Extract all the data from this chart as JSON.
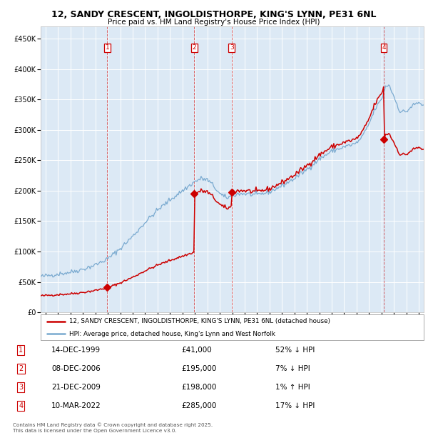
{
  "title": "12, SANDY CRESCENT, INGOLDISTHORPE, KING'S LYNN, PE31 6NL",
  "subtitle": "Price paid vs. HM Land Registry's House Price Index (HPI)",
  "background_color": "#dce9f5",
  "ylim": [
    0,
    470000
  ],
  "yticks": [
    0,
    50000,
    100000,
    150000,
    200000,
    250000,
    300000,
    350000,
    400000,
    450000
  ],
  "xlim_start": 1994.6,
  "xlim_end": 2025.4,
  "transactions": [
    {
      "num": 1,
      "date_str": "14-DEC-1999",
      "date_x": 1999.96,
      "price": 41000
    },
    {
      "num": 2,
      "date_str": "08-DEC-2006",
      "date_x": 2006.94,
      "price": 195000
    },
    {
      "num": 3,
      "date_str": "21-DEC-2009",
      "date_x": 2009.97,
      "price": 198000
    },
    {
      "num": 4,
      "date_str": "10-MAR-2022",
      "date_x": 2022.19,
      "price": 285000
    }
  ],
  "legend_line1": "12, SANDY CRESCENT, INGOLDISTHORPE, KING'S LYNN, PE31 6NL (detached house)",
  "legend_line2": "HPI: Average price, detached house, King's Lynn and West Norfolk",
  "table_rows": [
    [
      1,
      "14-DEC-1999",
      "£41,000",
      "52% ↓ HPI"
    ],
    [
      2,
      "08-DEC-2006",
      "£195,000",
      "7% ↓ HPI"
    ],
    [
      3,
      "21-DEC-2009",
      "£198,000",
      "1% ↑ HPI"
    ],
    [
      4,
      "10-MAR-2022",
      "£285,000",
      "17% ↓ HPI"
    ]
  ],
  "footer": "Contains HM Land Registry data © Crown copyright and database right 2025.\nThis data is licensed under the Open Government Licence v3.0.",
  "red_color": "#cc0000",
  "blue_color": "#7aaad0"
}
